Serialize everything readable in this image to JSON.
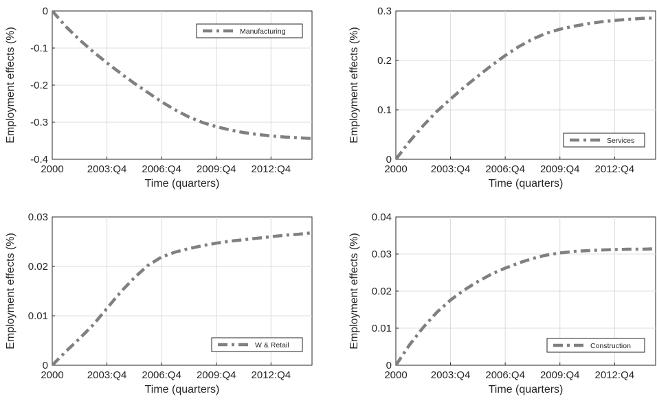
{
  "chart_data": [
    {
      "type": "line",
      "xlabel": "Time (quarters)",
      "ylabel": "Employment effects (%)",
      "xlim": [
        0,
        57
      ],
      "ylim": [
        -0.4,
        0
      ],
      "yticks": [
        0,
        -0.1,
        -0.2,
        -0.3,
        -0.4
      ],
      "ytick_labels": [
        "0",
        "-0.1",
        "-0.2",
        "-0.3",
        "-0.4"
      ],
      "xticks": [
        0,
        12,
        24,
        36,
        48
      ],
      "xtick_labels": [
        "2000",
        "2003:Q4",
        "2006:Q4",
        "2009:Q4",
        "2012:Q4"
      ],
      "grid": true,
      "legend_position": "top-right",
      "series": [
        {
          "name": "Manufacturing",
          "color": "#808080",
          "line_style": "dash-dot",
          "x": [
            0,
            3,
            6,
            9,
            12,
            15,
            18,
            21,
            24,
            27,
            30,
            33,
            36,
            39,
            42,
            45,
            48,
            51,
            54,
            57
          ],
          "y": [
            0,
            -0.042,
            -0.078,
            -0.11,
            -0.14,
            -0.168,
            -0.195,
            -0.22,
            -0.245,
            -0.267,
            -0.286,
            -0.301,
            -0.312,
            -0.321,
            -0.328,
            -0.333,
            -0.337,
            -0.34,
            -0.342,
            -0.344
          ]
        }
      ]
    },
    {
      "type": "line",
      "xlabel": "Time (quarters)",
      "ylabel": "Employment effects (%)",
      "xlim": [
        0,
        57
      ],
      "ylim": [
        0,
        0.3
      ],
      "yticks": [
        0,
        0.1,
        0.2,
        0.3
      ],
      "ytick_labels": [
        "0",
        "0.1",
        "0.2",
        "0.3"
      ],
      "xticks": [
        0,
        12,
        24,
        36,
        48
      ],
      "xtick_labels": [
        "2000",
        "2003:Q4",
        "2006:Q4",
        "2009:Q4",
        "2012:Q4"
      ],
      "grid": true,
      "legend_position": "bottom-right",
      "series": [
        {
          "name": "Services",
          "color": "#808080",
          "line_style": "dash-dot",
          "x": [
            0,
            3,
            6,
            9,
            12,
            15,
            18,
            21,
            24,
            27,
            30,
            33,
            36,
            39,
            42,
            45,
            48,
            51,
            54,
            57
          ],
          "y": [
            0,
            0.036,
            0.068,
            0.097,
            0.122,
            0.146,
            0.168,
            0.19,
            0.21,
            0.228,
            0.243,
            0.255,
            0.263,
            0.269,
            0.274,
            0.278,
            0.281,
            0.283,
            0.285,
            0.286
          ]
        }
      ]
    },
    {
      "type": "line",
      "xlabel": "Time (quarters)",
      "ylabel": "Employment effects (%)",
      "xlim": [
        0,
        57
      ],
      "ylim": [
        0,
        0.03
      ],
      "yticks": [
        0,
        0.01,
        0.02,
        0.03
      ],
      "ytick_labels": [
        "0",
        "0.01",
        "0.02",
        "0.03"
      ],
      "xticks": [
        0,
        12,
        24,
        36,
        48
      ],
      "xtick_labels": [
        "2000",
        "2003:Q4",
        "2006:Q4",
        "2009:Q4",
        "2012:Q4"
      ],
      "grid": true,
      "legend_position": "bottom-right",
      "series": [
        {
          "name": "W & Retail",
          "color": "#808080",
          "line_style": "dash-dot",
          "x": [
            0,
            3,
            6,
            9,
            12,
            15,
            18,
            21,
            24,
            27,
            30,
            33,
            36,
            39,
            42,
            45,
            48,
            51,
            54,
            57
          ],
          "y": [
            0,
            0.0028,
            0.0054,
            0.0082,
            0.0115,
            0.0148,
            0.0177,
            0.0202,
            0.0219,
            0.0229,
            0.0236,
            0.0242,
            0.0247,
            0.0251,
            0.0254,
            0.0257,
            0.026,
            0.0263,
            0.0265,
            0.0268
          ]
        }
      ]
    },
    {
      "type": "line",
      "xlabel": "Time (quarters)",
      "ylabel": "Employment effects (%)",
      "xlim": [
        0,
        57
      ],
      "ylim": [
        0,
        0.04
      ],
      "yticks": [
        0,
        0.01,
        0.02,
        0.03,
        0.04
      ],
      "ytick_labels": [
        "0",
        "0.01",
        "0.02",
        "0.03",
        "0.04"
      ],
      "xticks": [
        0,
        12,
        24,
        36,
        48
      ],
      "xtick_labels": [
        "2000",
        "2003:Q4",
        "2006:Q4",
        "2009:Q4",
        "2012:Q4"
      ],
      "grid": true,
      "legend_position": "bottom-right",
      "series": [
        {
          "name": "Construction",
          "color": "#808080",
          "line_style": "dash-dot",
          "x": [
            0,
            3,
            6,
            9,
            12,
            15,
            18,
            21,
            24,
            27,
            30,
            33,
            36,
            39,
            42,
            45,
            48,
            51,
            54,
            57
          ],
          "y": [
            0,
            0.0055,
            0.0102,
            0.0143,
            0.0176,
            0.0203,
            0.0226,
            0.0246,
            0.0262,
            0.0276,
            0.0288,
            0.0297,
            0.0303,
            0.0307,
            0.0309,
            0.0311,
            0.0312,
            0.0313,
            0.0313,
            0.0314
          ]
        }
      ]
    }
  ]
}
